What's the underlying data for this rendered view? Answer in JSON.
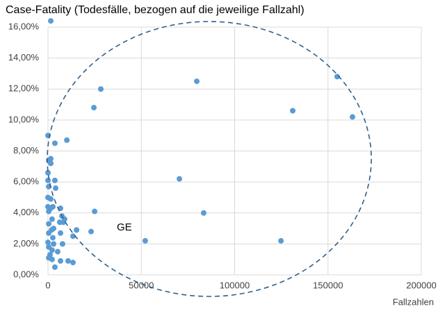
{
  "chart_data": {
    "type": "scatter",
    "title": "Case-Fatality (Todesfälle, bezogen auf die jeweilige Fallzahl)",
    "x_label": "Fallzahlen",
    "annotation": "GE",
    "color": "#5b9bd5",
    "grid": true,
    "xlim": [
      0,
      200000
    ],
    "xticks": [
      0,
      50000,
      100000,
      150000,
      200000
    ],
    "ylim": [
      0,
      16
    ],
    "yticks": [
      {
        "value": 0,
        "label": "0,00%"
      },
      {
        "value": 2,
        "label": "2,00%"
      },
      {
        "value": 4,
        "label": "4,00%"
      },
      {
        "value": 6,
        "label": "6,00%"
      },
      {
        "value": 8,
        "label": "8,00%"
      },
      {
        "value": 10,
        "label": "10,00%"
      },
      {
        "value": 12,
        "label": "12,00%"
      },
      {
        "value": 14,
        "label": "14,00%"
      },
      {
        "value": 16,
        "label": "16,00%"
      }
    ],
    "x": [
      1500,
      154900,
      28300,
      79700,
      24600,
      131100,
      163100,
      0,
      10100,
      3700,
      1500,
      400,
      1500,
      0,
      0,
      400,
      4100,
      3700,
      0,
      1500,
      2600,
      0,
      400,
      2200,
      6700,
      1500,
      7500,
      400,
      3000,
      8900,
      8200,
      6300,
      1900,
      400,
      15300,
      13400,
      23100,
      0,
      6700,
      2600,
      400,
      3000,
      7800,
      2200,
      1100,
      5200,
      400,
      2200,
      6700,
      10800,
      13400,
      3700,
      70400,
      83400,
      52100,
      124800,
      25000
    ],
    "values": [
      16.4,
      12.8,
      12.0,
      12.5,
      10.8,
      10.6,
      10.2,
      9.0,
      8.7,
      8.5,
      7.5,
      7.4,
      7.2,
      6.6,
      6.1,
      5.7,
      5.6,
      6.1,
      5.0,
      4.9,
      4.4,
      4.4,
      4.1,
      3.6,
      4.3,
      4.3,
      3.8,
      3.3,
      3.0,
      3.6,
      3.4,
      3.4,
      2.9,
      2.7,
      2.9,
      2.5,
      2.8,
      2.1,
      2.7,
      2.4,
      1.8,
      2.0,
      2.0,
      1.6,
      1.3,
      1.5,
      1.1,
      1.0,
      0.9,
      0.9,
      0.8,
      0.5,
      6.2,
      4.0,
      2.2,
      2.2,
      4.1
    ]
  }
}
